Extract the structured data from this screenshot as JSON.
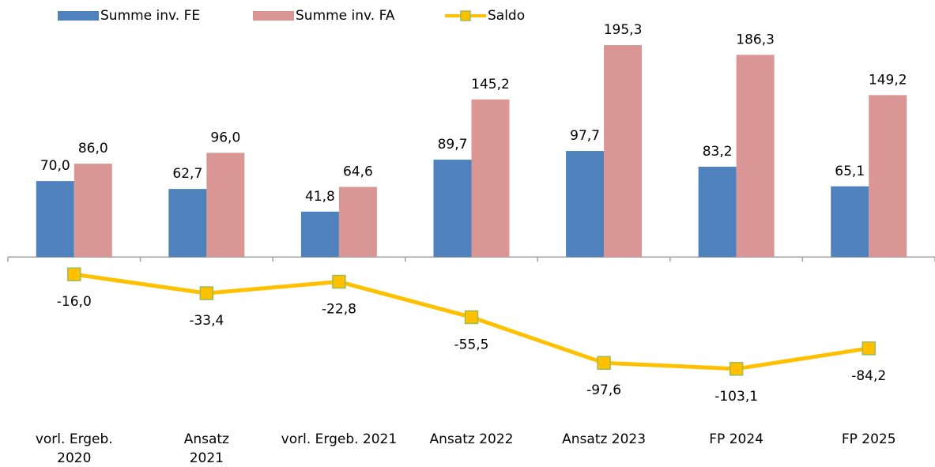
{
  "chart_data": {
    "type": "bar",
    "categories": [
      "vorl. Ergeb.\n2020",
      "Ansatz\n2021",
      "vorl. Ergeb. 2021",
      "Ansatz 2022",
      "Ansatz 2023",
      "FP 2024",
      "FP 2025"
    ],
    "ylim": [
      -120,
      215
    ],
    "series": [
      {
        "name": "Summe inv. FE",
        "color": "#4f81bd",
        "values": [
          70.0,
          62.7,
          41.8,
          89.7,
          97.7,
          83.2,
          65.1
        ],
        "value_labels": [
          "70,0",
          "62,7",
          "41,8",
          "89,7",
          "97,7",
          "83,2",
          "65,1"
        ]
      },
      {
        "name": "Summe inv. FA",
        "color": "#d99694",
        "values": [
          86.0,
          96.0,
          64.6,
          145.2,
          195.3,
          186.3,
          149.2
        ],
        "value_labels": [
          "86,0",
          "96,0",
          "64,6",
          "145,2",
          "195,3",
          "186,3",
          "149,2"
        ]
      },
      {
        "name": "Saldo",
        "type": "line",
        "color": "#ffc000",
        "marker_edge_color": "#9bbb59",
        "values": [
          -16.0,
          -33.4,
          -22.8,
          -55.5,
          -97.6,
          -103.1,
          -84.2
        ],
        "value_labels": [
          "-16,0",
          "-33,4",
          "-22,8",
          "-55,5",
          "-97,6",
          "-103,1",
          "-84,2"
        ]
      }
    ]
  }
}
